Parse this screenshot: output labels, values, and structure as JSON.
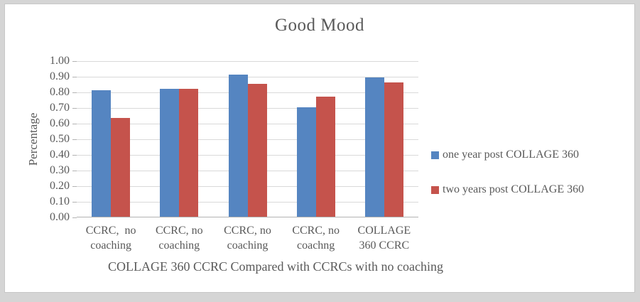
{
  "title": "Good Mood",
  "colors": {
    "series1_blue": "#5585c1",
    "series2_red": "#c5534c",
    "text": "#595959",
    "gridline": "#d9d9d9",
    "axis_line": "#b3b3b3",
    "chart_background": "#ffffff",
    "page_background": "#d5d5d5"
  },
  "chart_data": {
    "type": "bar",
    "title": "Good Mood",
    "categories": [
      "CCRC,  no coaching",
      "CCRC, no coaching",
      "CCRC, no coaching",
      "CCRC, no coachng",
      "COLLAGE 360 CCRC"
    ],
    "series": [
      {
        "name": "one year post COLLAGE 360",
        "color": "#5585c1",
        "values": [
          0.81,
          0.82,
          0.91,
          0.7,
          0.89
        ]
      },
      {
        "name": "two years post COLLAGE 360",
        "color": "#c5534c",
        "values": [
          0.63,
          0.82,
          0.85,
          0.77,
          0.86
        ]
      }
    ],
    "xlabel": "COLLAGE 360 CCRC Compared with CCRCs with no coaching",
    "ylabel": "Percentage",
    "ylim": [
      0,
      1.0
    ],
    "ytick_step": 0.1,
    "yticks": [
      "1.00",
      "0.90",
      "0.80",
      "0.70",
      "0.60",
      "0.50",
      "0.40",
      "0.30",
      "0.20",
      "0.10",
      "0.00"
    ],
    "grid": "horizontal",
    "legend_position": "right"
  }
}
